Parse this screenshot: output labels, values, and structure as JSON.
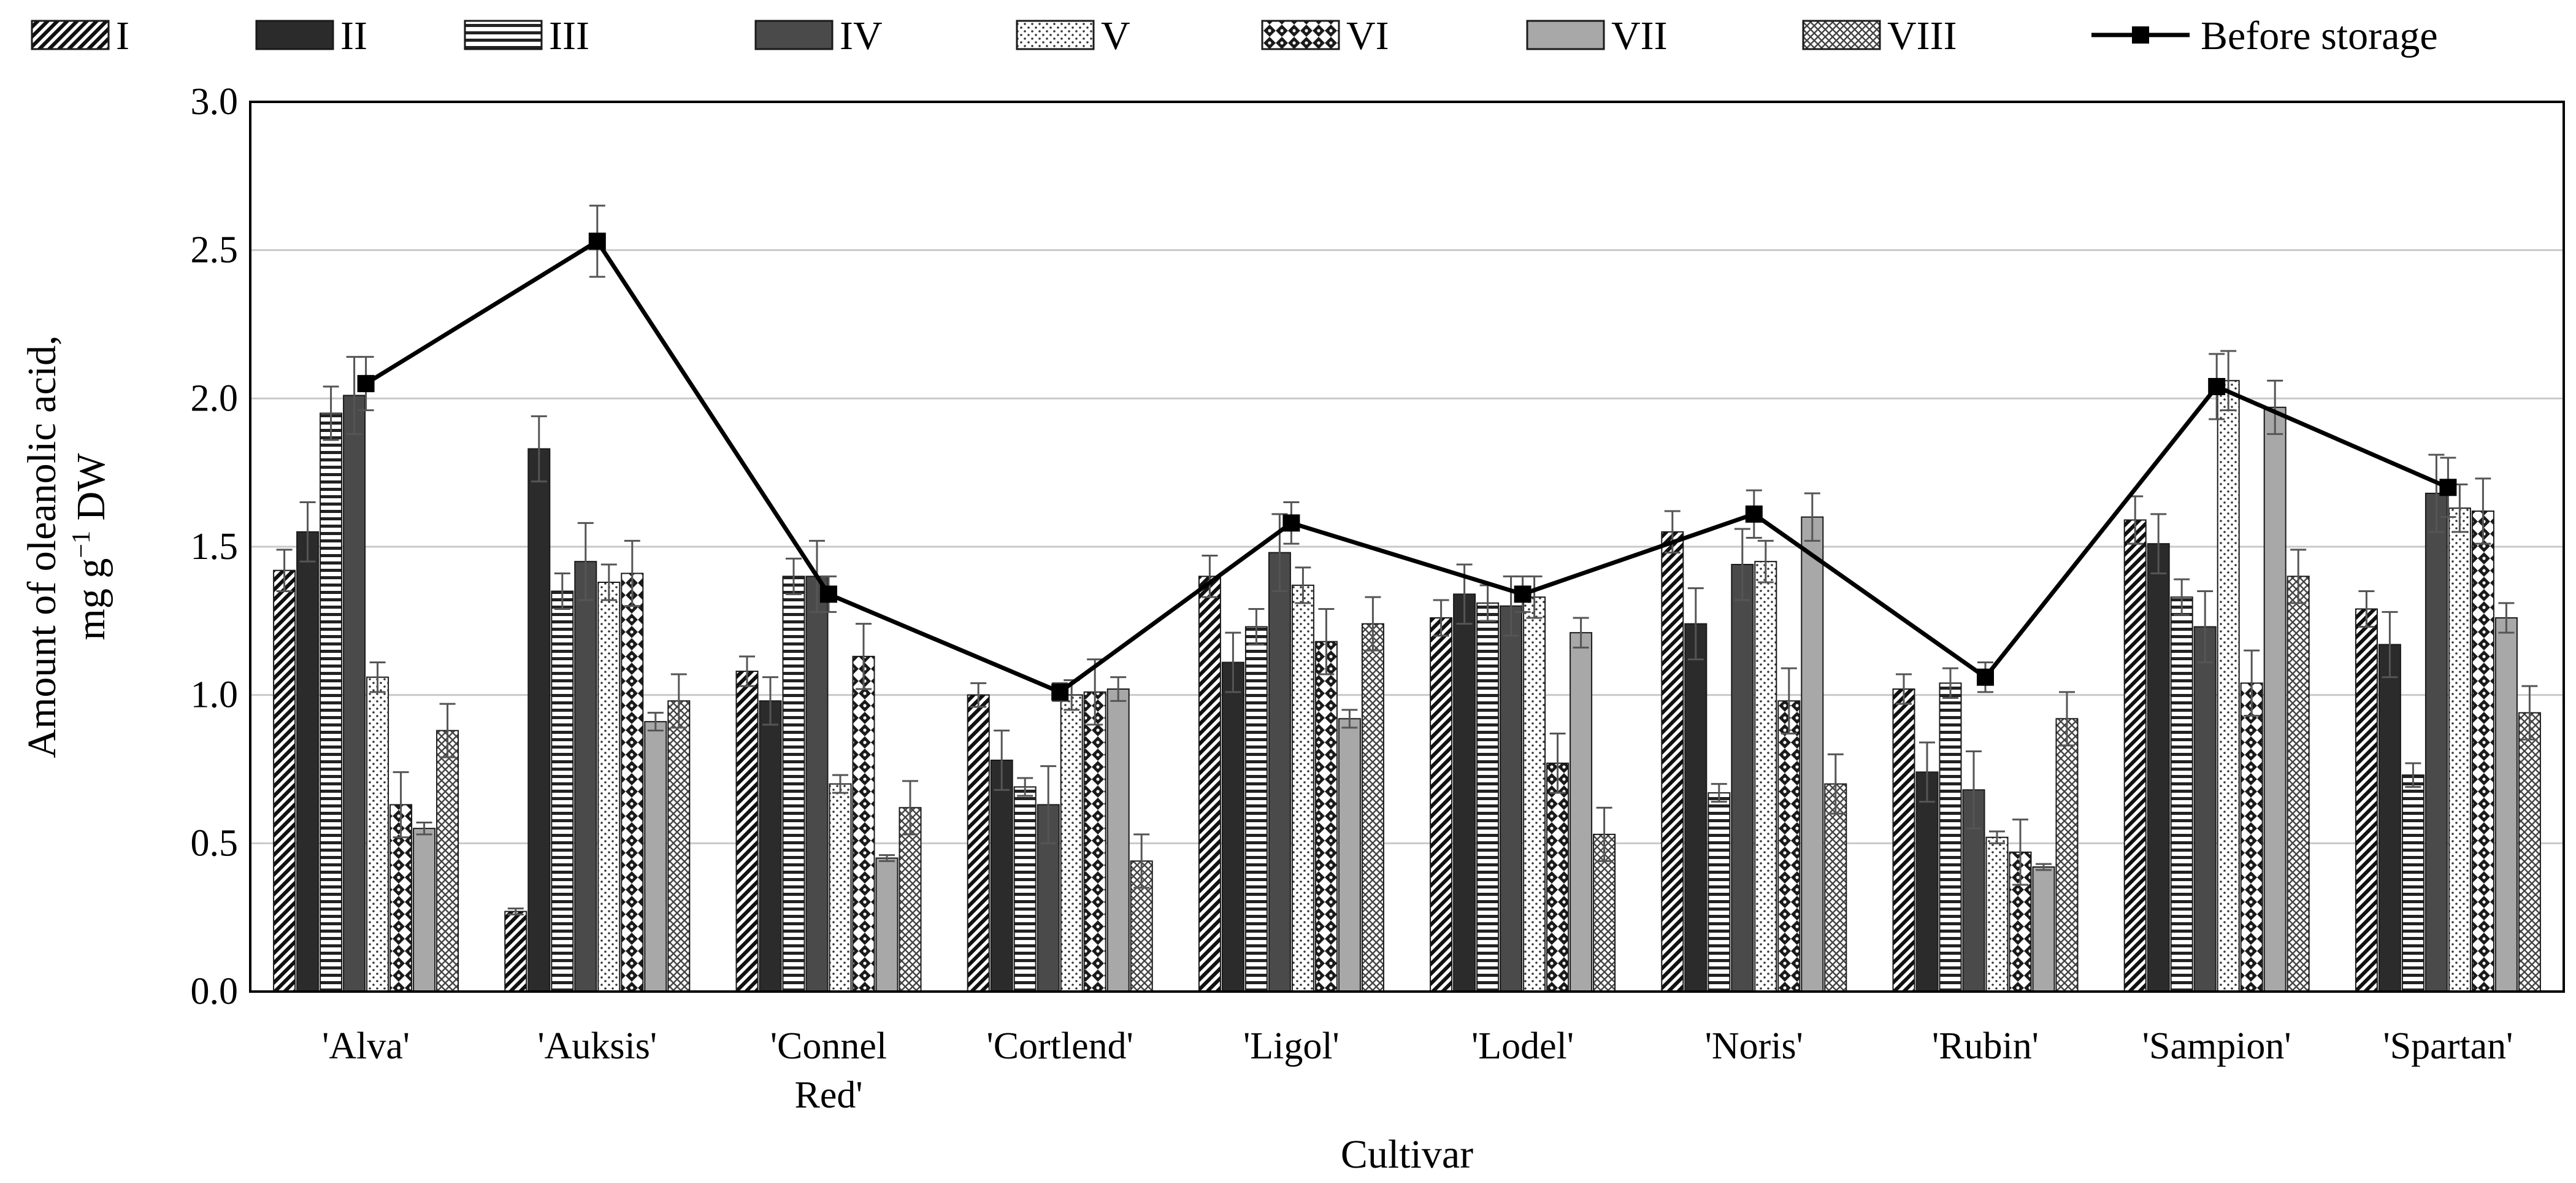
{
  "chart_data": {
    "type": "bar",
    "title": "",
    "xlabel": "Cultivar",
    "ylabel_line1": "Amount of oleanolic acid,",
    "ylabel_line2_prefix": "mg g",
    "ylabel_line2_sup": "−1",
    "ylabel_line2_suffix": " DW",
    "ylim": [
      0,
      3.0
    ],
    "yticks": [
      "0.0",
      "0.5",
      "1.0",
      "1.5",
      "2.0",
      "2.5",
      "3.0"
    ],
    "grid": true,
    "legend_position": "top",
    "categories": [
      [
        "'Alva'"
      ],
      [
        "'Auksis'"
      ],
      [
        "'Connel",
        "Red'"
      ],
      [
        "'Cortlend'"
      ],
      [
        "'Ligol'"
      ],
      [
        "'Lodel'"
      ],
      [
        "'Noris'"
      ],
      [
        "'Rubin'"
      ],
      [
        "'Sampion'"
      ],
      [
        "'Spartan'"
      ]
    ],
    "series": [
      {
        "name": "I",
        "pattern": "diag",
        "values": [
          1.42,
          0.27,
          1.08,
          1.0,
          1.4,
          1.26,
          1.55,
          1.02,
          1.59,
          1.29
        ],
        "errors": [
          0.07,
          0.01,
          0.05,
          0.04,
          0.07,
          0.06,
          0.07,
          0.05,
          0.08,
          0.06
        ]
      },
      {
        "name": "II",
        "pattern": "dark",
        "values": [
          1.55,
          1.83,
          0.98,
          0.78,
          1.11,
          1.34,
          1.24,
          0.74,
          1.51,
          1.17
        ],
        "errors": [
          0.1,
          0.11,
          0.08,
          0.1,
          0.1,
          0.1,
          0.12,
          0.1,
          0.1,
          0.11
        ]
      },
      {
        "name": "III",
        "pattern": "hlines",
        "values": [
          1.95,
          1.35,
          1.4,
          0.69,
          1.23,
          1.31,
          0.67,
          1.04,
          1.33,
          0.73
        ],
        "errors": [
          0.09,
          0.06,
          0.06,
          0.03,
          0.06,
          0.06,
          0.03,
          0.05,
          0.06,
          0.04
        ]
      },
      {
        "name": "IV",
        "pattern": "darkgray",
        "values": [
          2.01,
          1.45,
          1.4,
          0.63,
          1.48,
          1.3,
          1.44,
          0.68,
          1.23,
          1.68
        ],
        "errors": [
          0.13,
          0.13,
          0.12,
          0.13,
          0.13,
          0.1,
          0.12,
          0.13,
          0.12,
          0.13
        ]
      },
      {
        "name": "V",
        "pattern": "dots",
        "values": [
          1.06,
          1.38,
          0.7,
          1.0,
          1.37,
          1.33,
          1.45,
          0.52,
          2.06,
          1.63
        ],
        "errors": [
          0.05,
          0.06,
          0.03,
          0.05,
          0.06,
          0.07,
          0.07,
          0.02,
          0.1,
          0.08
        ]
      },
      {
        "name": "VI",
        "pattern": "checks",
        "values": [
          0.63,
          1.41,
          1.13,
          1.01,
          1.18,
          0.77,
          0.98,
          0.47,
          1.04,
          1.62
        ],
        "errors": [
          0.11,
          0.11,
          0.11,
          0.11,
          0.11,
          0.1,
          0.11,
          0.11,
          0.11,
          0.11
        ]
      },
      {
        "name": "VII",
        "pattern": "gray",
        "values": [
          0.55,
          0.91,
          0.45,
          1.02,
          0.92,
          1.21,
          1.6,
          0.42,
          1.97,
          1.26
        ],
        "errors": [
          0.02,
          0.03,
          0.01,
          0.04,
          0.03,
          0.05,
          0.08,
          0.01,
          0.09,
          0.05
        ]
      },
      {
        "name": "VIII",
        "pattern": "crosshatch",
        "values": [
          0.88,
          0.98,
          0.62,
          0.44,
          1.24,
          0.53,
          0.7,
          0.92,
          1.4,
          0.94
        ],
        "errors": [
          0.09,
          0.09,
          0.09,
          0.09,
          0.09,
          0.09,
          0.1,
          0.09,
          0.09,
          0.09
        ]
      }
    ],
    "line_series": {
      "name": "Before storage",
      "values": [
        2.05,
        2.53,
        1.34,
        1.01,
        1.58,
        1.34,
        1.61,
        1.06,
        2.04,
        1.7
      ],
      "errors": [
        0.09,
        0.12,
        0.06,
        0.03,
        0.07,
        0.06,
        0.08,
        0.05,
        0.11,
        0.1
      ]
    }
  }
}
